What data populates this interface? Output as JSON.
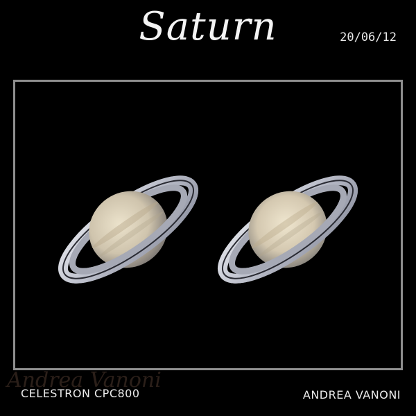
{
  "title": "Saturn",
  "date": "20/06/12",
  "telescope": "CELESTRON CPC800",
  "author": "ANDREA VANONI",
  "watermark": "Andrea Vanoni",
  "images": [
    {
      "name": "saturn-left"
    },
    {
      "name": "saturn-right"
    }
  ],
  "colors": {
    "background": "#000000",
    "frame": "#8e8e8e",
    "ring": "#c9ccd6",
    "globe_light": "#e6dcc3",
    "globe_shadow": "#8f8a86"
  }
}
